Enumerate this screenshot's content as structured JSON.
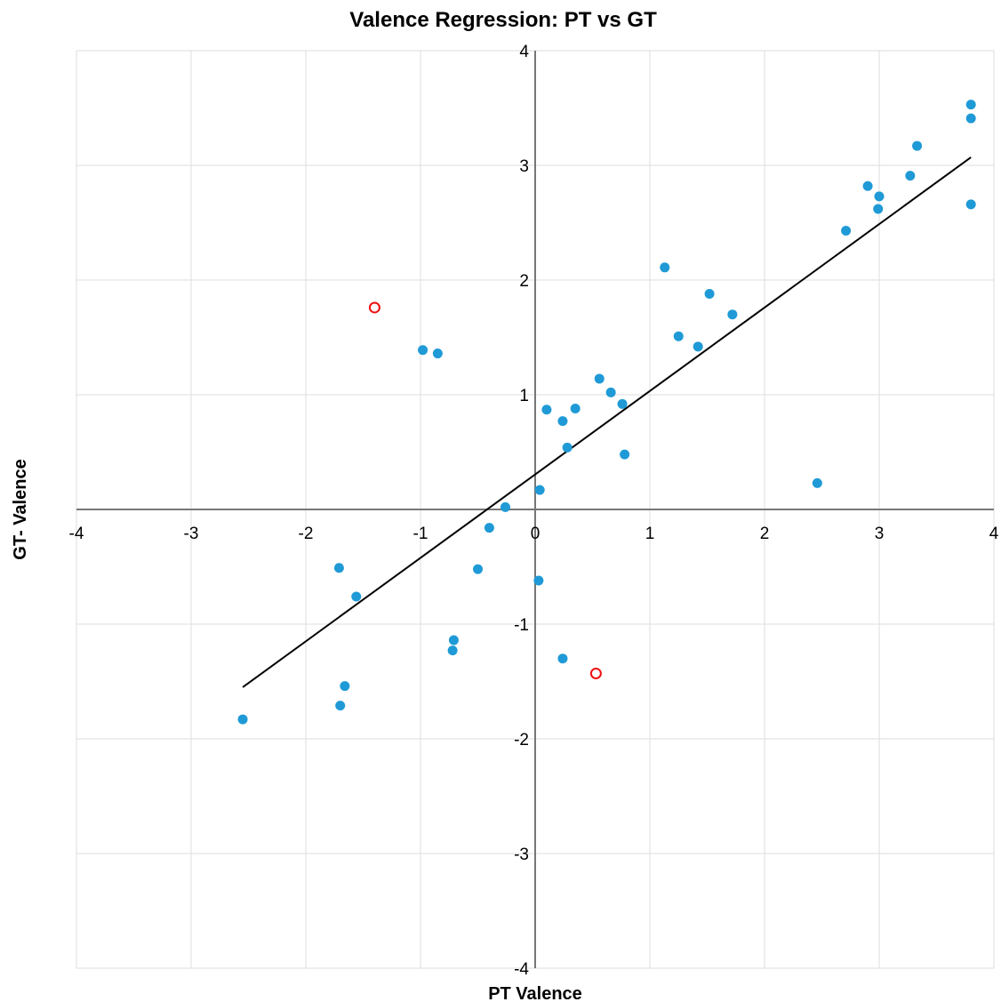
{
  "chart_data": {
    "type": "scatter",
    "title": "Valence Regression: PT vs GT",
    "xlabel": "PT Valence",
    "ylabel": "GT- Valence",
    "xlim": [
      -4,
      4
    ],
    "ylim": [
      -4,
      4
    ],
    "xticks": [
      -4,
      -3,
      -2,
      -1,
      0,
      1,
      2,
      3,
      4
    ],
    "yticks": [
      -4,
      -3,
      -2,
      -1,
      0,
      1,
      2,
      3,
      4
    ],
    "grid": true,
    "colors": {
      "points": "#1f9ad6",
      "outliers": "#ee1111",
      "regression": "#000000",
      "axes": "#777777",
      "grid": "#dddddd"
    },
    "series": [
      {
        "marker": "filled-circle",
        "points": [
          [
            3.8,
            3.53
          ],
          [
            3.8,
            3.41
          ],
          [
            3.33,
            3.17
          ],
          [
            2.9,
            2.82
          ],
          [
            3.0,
            2.73
          ],
          [
            3.27,
            2.91
          ],
          [
            2.99,
            2.62
          ],
          [
            3.8,
            2.66
          ],
          [
            2.71,
            2.43
          ],
          [
            1.13,
            2.11
          ],
          [
            1.52,
            1.88
          ],
          [
            1.72,
            1.7
          ],
          [
            1.25,
            1.51
          ],
          [
            1.42,
            1.42
          ],
          [
            -0.98,
            1.39
          ],
          [
            -0.85,
            1.36
          ],
          [
            0.56,
            1.14
          ],
          [
            0.66,
            1.02
          ],
          [
            0.1,
            0.87
          ],
          [
            0.35,
            0.88
          ],
          [
            0.24,
            0.77
          ],
          [
            0.76,
            0.92
          ],
          [
            0.28,
            0.54
          ],
          [
            0.78,
            0.48
          ],
          [
            0.04,
            0.17
          ],
          [
            2.46,
            0.23
          ],
          [
            -0.26,
            0.02
          ],
          [
            -0.4,
            -0.16
          ],
          [
            -0.5,
            -0.52
          ],
          [
            0.03,
            -0.62
          ],
          [
            -1.71,
            -0.51
          ],
          [
            -1.56,
            -0.76
          ],
          [
            -0.71,
            -1.14
          ],
          [
            -0.72,
            -1.23
          ],
          [
            0.24,
            -1.3
          ],
          [
            -1.66,
            -1.54
          ],
          [
            -1.7,
            -1.71
          ],
          [
            -2.55,
            -1.83
          ]
        ]
      },
      {
        "marker": "open-circle",
        "points": [
          [
            -1.4,
            1.76
          ],
          [
            0.53,
            -1.43
          ]
        ]
      }
    ],
    "regression_line": {
      "x": [
        -2.55,
        3.8
      ],
      "y": [
        -1.55,
        3.07
      ]
    }
  }
}
